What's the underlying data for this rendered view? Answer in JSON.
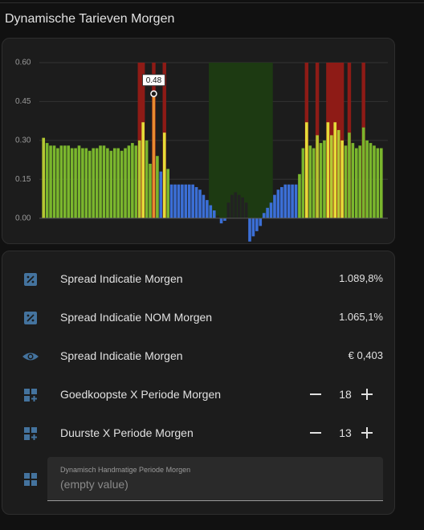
{
  "header": {
    "title": "Dynamische Tarieven Morgen"
  },
  "chart_data": {
    "type": "bar",
    "values": [
      0.31,
      0.29,
      0.28,
      0.28,
      0.27,
      0.28,
      0.28,
      0.28,
      0.27,
      0.27,
      0.28,
      0.27,
      0.27,
      0.26,
      0.27,
      0.27,
      0.28,
      0.28,
      0.27,
      0.26,
      0.27,
      0.27,
      0.26,
      0.27,
      0.28,
      0.29,
      0.28,
      0.3,
      0.37,
      0.3,
      0.21,
      0.48,
      0.24,
      0.18,
      0.33,
      0.19,
      0.13,
      0.13,
      0.13,
      0.13,
      0.13,
      0.13,
      0.13,
      0.12,
      0.11,
      0.09,
      0.07,
      0.05,
      0.03,
      0.01,
      -0.02,
      -0.01,
      0.06,
      0.09,
      0.1,
      0.09,
      0.08,
      0.06,
      -0.09,
      -0.07,
      -0.05,
      -0.03,
      0.02,
      0.04,
      0.06,
      0.09,
      0.11,
      0.12,
      0.13,
      0.13,
      0.13,
      0.13,
      0.17,
      0.27,
      0.37,
      0.28,
      0.27,
      0.32,
      0.29,
      0.3,
      0.37,
      0.32,
      0.37,
      0.34,
      0.3,
      0.28,
      0.33,
      0.29,
      0.27,
      0.28,
      0.35,
      0.3,
      0.29,
      0.28,
      0.27,
      0.27
    ],
    "colors": [
      "#b4c832",
      "#7ab62d",
      "#7ab62d",
      "#7ab62d",
      "#7ab62d",
      "#7ab62d",
      "#7ab62d",
      "#7ab62d",
      "#7ab62d",
      "#7ab62d",
      "#7ab62d",
      "#7ab62d",
      "#7ab62d",
      "#7ab62d",
      "#7ab62d",
      "#7ab62d",
      "#7ab62d",
      "#7ab62d",
      "#7ab62d",
      "#7ab62d",
      "#7ab62d",
      "#7ab62d",
      "#7ab62d",
      "#7ab62d",
      "#7ab62d",
      "#7ab62d",
      "#7ab62d",
      "#b4c832",
      "#e4dc38",
      "#7ab62d",
      "#7ab62d",
      "#e88b2f",
      "#7ab62d",
      "#3b6fd6",
      "#e4dc38",
      "#7ab62d",
      "#3b6fd6",
      "#3b6fd6",
      "#3b6fd6",
      "#3b6fd6",
      "#3b6fd6",
      "#3b6fd6",
      "#3b6fd6",
      "#3b6fd6",
      "#3b6fd6",
      "#3b6fd6",
      "#3b6fd6",
      "#3b6fd6",
      "#3b6fd6",
      "#222222",
      "#3b6fd6",
      "#3b6fd6",
      "#222222",
      "#222222",
      "#222222",
      "#222222",
      "#222222",
      "#222222",
      "#3b6fd6",
      "#3b6fd6",
      "#3b6fd6",
      "#3b6fd6",
      "#3b6fd6",
      "#3b6fd6",
      "#3b6fd6",
      "#3b6fd6",
      "#3b6fd6",
      "#3b6fd6",
      "#3b6fd6",
      "#3b6fd6",
      "#3b6fd6",
      "#3b6fd6",
      "#7ab62d",
      "#7ab62d",
      "#e4dc38",
      "#7ab62d",
      "#7ab62d",
      "#b4c832",
      "#7ab62d",
      "#7ab62d",
      "#e4dc38",
      "#b4c832",
      "#e4dc38",
      "#b4c832",
      "#e4dc38",
      "#7ab62d",
      "#7ab62d",
      "#7ab62d",
      "#7ab62d",
      "#7ab62d",
      "#7ab62d",
      "#7ab62d",
      "#7ab62d",
      "#7ab62d",
      "#7ab62d",
      "#7ab62d"
    ],
    "bands": [
      {
        "from": 27,
        "to": 28,
        "color": "#8e1b16"
      },
      {
        "from": 31,
        "to": 31,
        "color": "#8e1b16"
      },
      {
        "from": 34,
        "to": 34,
        "color": "#8e1b16"
      },
      {
        "from": 74,
        "to": 74,
        "color": "#8e1b16"
      },
      {
        "from": 77,
        "to": 77,
        "color": "#8e1b16"
      },
      {
        "from": 80,
        "to": 84,
        "color": "#8e1b16"
      },
      {
        "from": 86,
        "to": 86,
        "color": "#8e1b16"
      },
      {
        "from": 90,
        "to": 90,
        "color": "#8e1b16"
      },
      {
        "from": 47,
        "to": 64,
        "color": "#1d3a12"
      }
    ],
    "tooltip_index": 31,
    "tooltip_label": "0.48",
    "ylim": [
      -0.1,
      0.6
    ],
    "yticks": [
      {
        "value": 0,
        "label": "0.00"
      },
      {
        "value": 0.15,
        "label": "0.15"
      },
      {
        "value": 0.3,
        "label": "0.30"
      },
      {
        "value": 0.45,
        "label": "0.45"
      },
      {
        "value": 0.6,
        "label": "0.60"
      }
    ],
    "grid": true
  },
  "entities": [
    {
      "name": "Spread Indicatie Morgen",
      "value": "1.089,8%"
    },
    {
      "name": "Spread Indicatie NOM Morgen",
      "value": "1.065,1%"
    },
    {
      "name": "Spread Indicatie Morgen",
      "value": "€ 0,403"
    },
    {
      "name": "Goedkoopste X Periode Morgen",
      "value": "18"
    },
    {
      "name": "Duurste X Periode Morgen",
      "value": "13"
    }
  ],
  "text_field": {
    "label": "Dynamisch Handmatige Periode Morgen",
    "placeholder": "(empty value)"
  }
}
